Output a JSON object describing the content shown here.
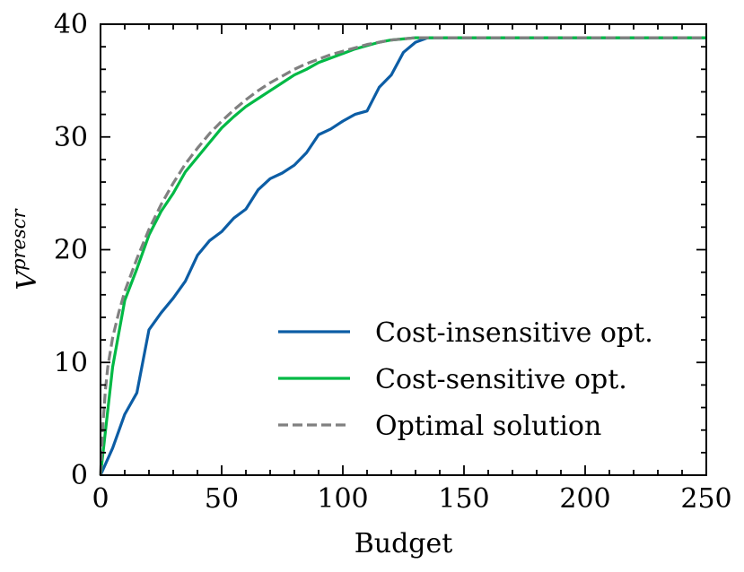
{
  "chart_data": {
    "type": "line",
    "title": "",
    "xlabel": "Budget",
    "ylabel_base": "V",
    "ylabel_sup": "prescr",
    "xlim": [
      0,
      250
    ],
    "ylim": [
      0,
      40
    ],
    "xticks": [
      0,
      50,
      100,
      150,
      200,
      250
    ],
    "yticks": [
      0,
      10,
      20,
      30,
      40
    ],
    "xtick_labels": [
      "0",
      "50",
      "100",
      "150",
      "200",
      "250"
    ],
    "ytick_labels": [
      "0",
      "10",
      "20",
      "30",
      "40"
    ],
    "grid": false,
    "legend_position": "lower-right",
    "series": [
      {
        "name": "Cost-insensitive opt.",
        "color": "#0C5DA5",
        "dash": "solid",
        "x": [
          0,
          5,
          10,
          15,
          20,
          25,
          30,
          35,
          40,
          45,
          50,
          55,
          60,
          65,
          70,
          75,
          80,
          85,
          90,
          95,
          100,
          105,
          110,
          115,
          120,
          125,
          130,
          135,
          140,
          250
        ],
        "y": [
          0,
          2.4,
          5.4,
          7.3,
          12.9,
          14.4,
          15.7,
          17.2,
          19.5,
          20.8,
          21.6,
          22.8,
          23.6,
          25.3,
          26.3,
          26.8,
          27.5,
          28.6,
          30.2,
          30.7,
          31.4,
          32.0,
          32.3,
          34.4,
          35.5,
          37.5,
          38.4,
          38.8,
          38.8,
          38.8
        ]
      },
      {
        "name": "Cost-sensitive opt.",
        "color": "#00B945",
        "dash": "solid",
        "x": [
          0,
          5,
          10,
          15,
          20,
          25,
          30,
          35,
          40,
          45,
          50,
          55,
          60,
          65,
          70,
          75,
          80,
          85,
          90,
          95,
          100,
          105,
          110,
          115,
          120,
          125,
          130,
          135,
          140,
          250
        ],
        "y": [
          0,
          9.6,
          15.5,
          18.3,
          21.3,
          23.4,
          25.0,
          26.9,
          28.2,
          29.5,
          30.8,
          31.8,
          32.7,
          33.4,
          34.1,
          34.8,
          35.5,
          36.0,
          36.6,
          37.0,
          37.4,
          37.8,
          38.1,
          38.4,
          38.6,
          38.7,
          38.8,
          38.8,
          38.8,
          38.8
        ]
      },
      {
        "name": "Optimal solution",
        "color": "#808080",
        "dash": "dashed",
        "x": [
          0,
          1,
          2,
          3,
          5,
          7.5,
          10,
          15,
          20,
          25,
          30,
          35,
          40,
          45,
          50,
          55,
          60,
          65,
          70,
          75,
          80,
          85,
          90,
          95,
          100,
          105,
          110,
          115,
          120,
          125,
          130,
          135,
          250
        ],
        "y": [
          0,
          4.5,
          7.5,
          9.6,
          12.2,
          14.4,
          16.3,
          19.2,
          21.8,
          24.0,
          25.9,
          27.6,
          29.0,
          30.3,
          31.4,
          32.4,
          33.3,
          34.1,
          34.8,
          35.4,
          36.0,
          36.5,
          36.9,
          37.3,
          37.6,
          37.9,
          38.2,
          38.4,
          38.6,
          38.7,
          38.8,
          38.8,
          38.8
        ]
      }
    ]
  }
}
